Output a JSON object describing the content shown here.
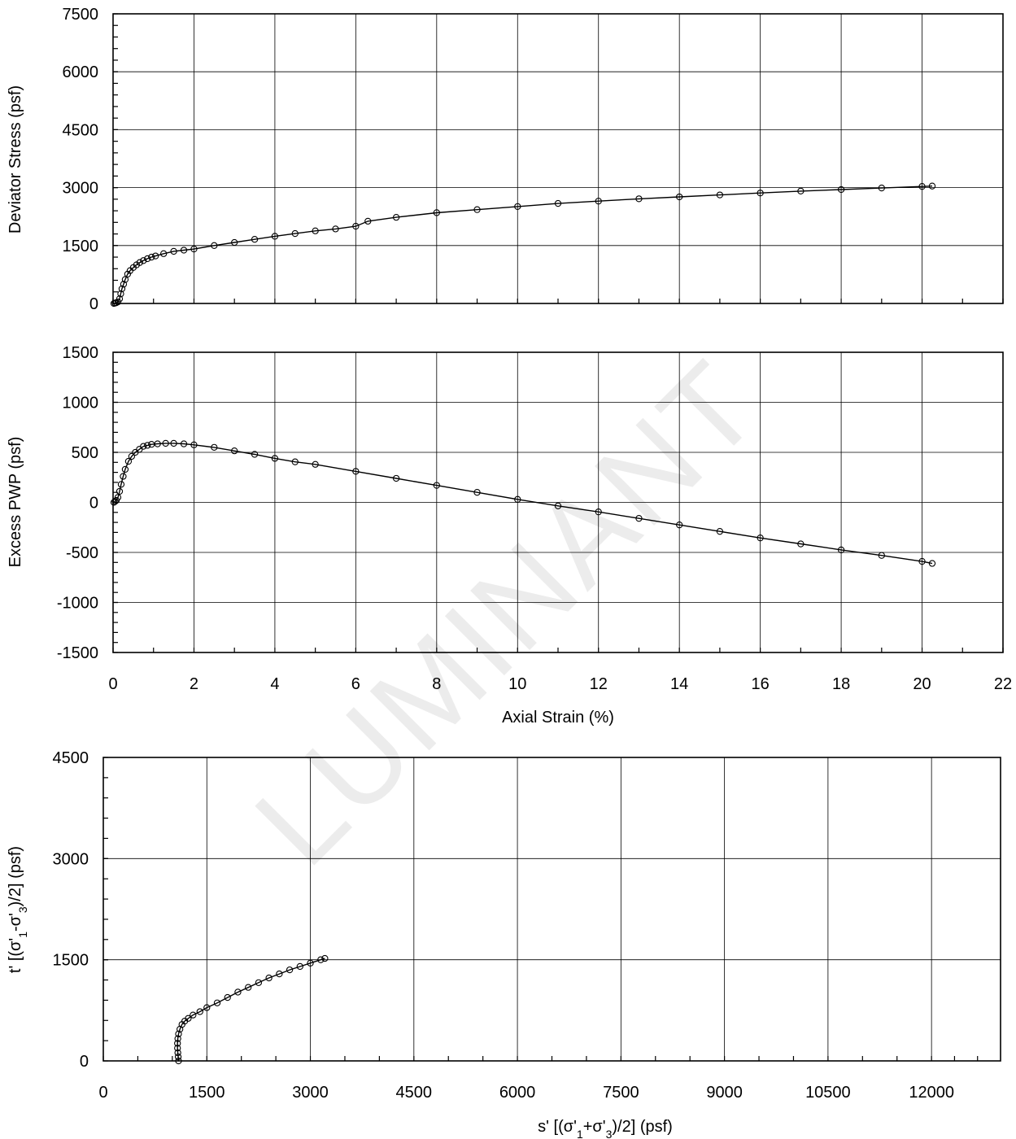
{
  "watermark": "LUMINANT",
  "chart_data": [
    {
      "id": "deviator",
      "type": "scatter",
      "title": "",
      "xlabel": "",
      "ylabel": "Deviator Stress (psf)",
      "xlim": [
        0,
        22
      ],
      "ylim": [
        0,
        7500
      ],
      "xticks": [
        0,
        2,
        4,
        6,
        8,
        10,
        12,
        14,
        16,
        18,
        20,
        22
      ],
      "yticks": [
        0,
        1500,
        3000,
        4500,
        6000,
        7500
      ],
      "show_x_tick_labels": false,
      "grid": true,
      "series": [
        {
          "name": "",
          "x": [
            0.02,
            0.05,
            0.08,
            0.12,
            0.16,
            0.19,
            0.22,
            0.26,
            0.3,
            0.36,
            0.42,
            0.5,
            0.58,
            0.66,
            0.75,
            0.85,
            0.95,
            1.05,
            1.25,
            1.5,
            1.75,
            2.0,
            2.5,
            3.0,
            3.5,
            4.0,
            4.5,
            5.0,
            5.5,
            6.0,
            6.3,
            7.0,
            8.0,
            9.0,
            10.0,
            11.0,
            12.0,
            13.0,
            14.0,
            15.0,
            16.0,
            17.0,
            18.0,
            19.0,
            20.0,
            20.25
          ],
          "y": [
            0,
            10,
            20,
            40,
            120,
            250,
            380,
            500,
            620,
            760,
            850,
            930,
            1000,
            1060,
            1110,
            1160,
            1200,
            1230,
            1290,
            1350,
            1380,
            1410,
            1500,
            1580,
            1660,
            1740,
            1810,
            1880,
            1930,
            2000,
            2130,
            2230,
            2350,
            2430,
            2510,
            2590,
            2650,
            2710,
            2760,
            2810,
            2860,
            2910,
            2950,
            2990,
            3030,
            3040
          ]
        }
      ]
    },
    {
      "id": "pwp",
      "type": "scatter",
      "title": "",
      "xlabel": "Axial Strain (%)",
      "ylabel": "Excess PWP (psf)",
      "xlim": [
        0,
        22
      ],
      "ylim": [
        -1500,
        1500
      ],
      "xticks": [
        0,
        2,
        4,
        6,
        8,
        10,
        12,
        14,
        16,
        18,
        20,
        22
      ],
      "yticks": [
        -1500,
        -1000,
        -500,
        0,
        500,
        1000,
        1500
      ],
      "show_x_tick_labels": true,
      "grid": true,
      "series": [
        {
          "name": "",
          "x": [
            0.02,
            0.05,
            0.08,
            0.12,
            0.16,
            0.2,
            0.25,
            0.3,
            0.38,
            0.46,
            0.55,
            0.65,
            0.75,
            0.85,
            0.95,
            1.1,
            1.3,
            1.5,
            1.75,
            2.0,
            2.5,
            3.0,
            3.5,
            4.0,
            4.5,
            5.0,
            6.0,
            7.0,
            8.0,
            9.0,
            10.0,
            11.0,
            12.0,
            13.0,
            14.0,
            15.0,
            16.0,
            17.0,
            18.0,
            19.0,
            20.0,
            20.25
          ],
          "y": [
            0,
            10,
            20,
            50,
            110,
            180,
            260,
            330,
            410,
            460,
            500,
            530,
            560,
            570,
            580,
            585,
            590,
            590,
            585,
            575,
            550,
            515,
            480,
            440,
            405,
            380,
            310,
            240,
            170,
            100,
            30,
            -35,
            -95,
            -160,
            -225,
            -290,
            -355,
            -415,
            -475,
            -530,
            -590,
            -610
          ]
        }
      ]
    },
    {
      "id": "stress_path",
      "type": "scatter",
      "title": "",
      "xlabel": "s' [(σ'1+σ'3)/2] (psf)",
      "ylabel": "t' [(σ'1-σ'3)/2] (psf)",
      "xlim": [
        0,
        13000
      ],
      "ylim": [
        0,
        4500
      ],
      "xticks": [
        0,
        1500,
        3000,
        4500,
        6000,
        7500,
        9000,
        10500,
        12000
      ],
      "yticks": [
        0,
        1500,
        3000,
        4500
      ],
      "show_x_tick_labels": true,
      "grid": true,
      "series": [
        {
          "name": "",
          "x": [
            1090,
            1085,
            1080,
            1075,
            1075,
            1080,
            1090,
            1110,
            1140,
            1180,
            1230,
            1300,
            1400,
            1500,
            1650,
            1800,
            1950,
            2100,
            2250,
            2400,
            2550,
            2700,
            2850,
            3000,
            3150,
            3210
          ],
          "y": [
            0,
            60,
            120,
            190,
            260,
            330,
            400,
            470,
            540,
            590,
            630,
            680,
            730,
            790,
            860,
            940,
            1020,
            1090,
            1160,
            1230,
            1290,
            1350,
            1400,
            1450,
            1500,
            1520
          ]
        }
      ]
    }
  ],
  "panel_labels": {
    "deviator": {
      "ylabel": "Deviator Stress (psf)",
      "yticklabels": [
        "0",
        "1500",
        "3000",
        "4500",
        "6000",
        "7500"
      ]
    },
    "pwp": {
      "ylabel": "Excess PWP (psf)",
      "xlabel": "Axial Strain (%)",
      "yticklabels": [
        "-1500",
        "-1000",
        "-500",
        "0",
        "500",
        "1000",
        "1500"
      ],
      "xticklabels": [
        "0",
        "2",
        "4",
        "6",
        "8",
        "10",
        "12",
        "14",
        "16",
        "18",
        "20",
        "22"
      ]
    },
    "stress_path": {
      "ylabel_parts": [
        "t' [(σ'",
        "1",
        "-σ'",
        "3",
        ")/2] (psf)"
      ],
      "xlabel_parts": [
        "s' [(σ'",
        "1",
        "+σ'",
        "3",
        ")/2] (psf)"
      ],
      "yticklabels": [
        "0",
        "1500",
        "3000",
        "4500"
      ],
      "xticklabels": [
        "0",
        "1500",
        "3000",
        "4500",
        "6000",
        "7500",
        "9000",
        "10500",
        "12000"
      ]
    }
  }
}
